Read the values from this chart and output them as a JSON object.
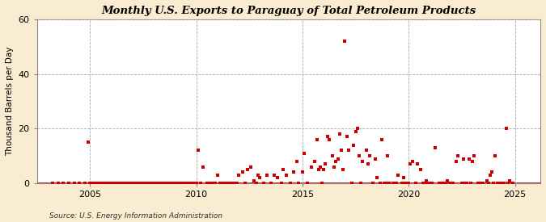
{
  "title": "Monthly U.S. Exports to Paraguay of Total Petroleum Products",
  "ylabel": "Thousand Barrels per Day",
  "source": "Source: U.S. Energy Information Administration",
  "fig_bg_color": "#faecd0",
  "plot_bg_color": "#ffffff",
  "marker_color": "#cc0000",
  "marker_size": 5,
  "ylim": [
    0,
    60
  ],
  "yticks": [
    0,
    20,
    40,
    60
  ],
  "xlim_start": 2002.5,
  "xlim_end": 2026.2,
  "xticks": [
    2005,
    2010,
    2015,
    2020,
    2025
  ],
  "data_points": [
    [
      2003.25,
      0
    ],
    [
      2003.5,
      0
    ],
    [
      2003.75,
      0
    ],
    [
      2004.0,
      0
    ],
    [
      2004.25,
      0
    ],
    [
      2004.5,
      0
    ],
    [
      2004.75,
      0
    ],
    [
      2004.9,
      15
    ],
    [
      2005.0,
      0
    ],
    [
      2005.1,
      0
    ],
    [
      2005.2,
      0
    ],
    [
      2005.3,
      0
    ],
    [
      2005.4,
      0
    ],
    [
      2005.5,
      0
    ],
    [
      2005.6,
      0
    ],
    [
      2005.7,
      0
    ],
    [
      2005.8,
      0
    ],
    [
      2005.9,
      0
    ],
    [
      2006.0,
      0
    ],
    [
      2006.1,
      0
    ],
    [
      2006.2,
      0
    ],
    [
      2006.3,
      0
    ],
    [
      2006.4,
      0
    ],
    [
      2006.5,
      0
    ],
    [
      2006.6,
      0
    ],
    [
      2006.7,
      0
    ],
    [
      2006.8,
      0
    ],
    [
      2006.9,
      0
    ],
    [
      2007.0,
      0
    ],
    [
      2007.1,
      0
    ],
    [
      2007.2,
      0
    ],
    [
      2007.3,
      0
    ],
    [
      2007.4,
      0
    ],
    [
      2007.5,
      0
    ],
    [
      2007.6,
      0
    ],
    [
      2007.7,
      0
    ],
    [
      2007.8,
      0
    ],
    [
      2007.9,
      0
    ],
    [
      2008.0,
      0
    ],
    [
      2008.1,
      0
    ],
    [
      2008.2,
      0
    ],
    [
      2008.3,
      0
    ],
    [
      2008.4,
      0
    ],
    [
      2008.5,
      0
    ],
    [
      2008.6,
      0
    ],
    [
      2008.7,
      0
    ],
    [
      2008.8,
      0
    ],
    [
      2008.9,
      0
    ],
    [
      2009.0,
      0
    ],
    [
      2009.1,
      0
    ],
    [
      2009.2,
      0
    ],
    [
      2009.3,
      0
    ],
    [
      2009.4,
      0
    ],
    [
      2009.5,
      0
    ],
    [
      2009.6,
      0
    ],
    [
      2009.7,
      0
    ],
    [
      2009.8,
      0
    ],
    [
      2009.9,
      0
    ],
    [
      2010.0,
      0
    ],
    [
      2010.08,
      12
    ],
    [
      2010.2,
      0
    ],
    [
      2010.33,
      6
    ],
    [
      2010.5,
      0
    ],
    [
      2010.6,
      0
    ],
    [
      2010.7,
      0
    ],
    [
      2010.8,
      0
    ],
    [
      2010.9,
      0
    ],
    [
      2011.0,
      3
    ],
    [
      2011.1,
      0
    ],
    [
      2011.2,
      0
    ],
    [
      2011.3,
      0
    ],
    [
      2011.4,
      0
    ],
    [
      2011.5,
      0
    ],
    [
      2011.6,
      0
    ],
    [
      2011.7,
      0
    ],
    [
      2011.8,
      0
    ],
    [
      2011.9,
      0
    ],
    [
      2012.0,
      3
    ],
    [
      2012.17,
      4
    ],
    [
      2012.3,
      0
    ],
    [
      2012.42,
      5
    ],
    [
      2012.58,
      6
    ],
    [
      2012.7,
      1
    ],
    [
      2012.83,
      0
    ],
    [
      2012.92,
      3
    ],
    [
      2013.0,
      2
    ],
    [
      2013.17,
      0
    ],
    [
      2013.33,
      3
    ],
    [
      2013.5,
      0
    ],
    [
      2013.67,
      3
    ],
    [
      2013.83,
      2
    ],
    [
      2014.0,
      0
    ],
    [
      2014.08,
      5
    ],
    [
      2014.25,
      3
    ],
    [
      2014.42,
      0
    ],
    [
      2014.58,
      4
    ],
    [
      2014.75,
      8
    ],
    [
      2014.83,
      0
    ],
    [
      2015.0,
      4
    ],
    [
      2015.08,
      11
    ],
    [
      2015.25,
      0
    ],
    [
      2015.42,
      6
    ],
    [
      2015.58,
      8
    ],
    [
      2015.67,
      16
    ],
    [
      2015.75,
      5
    ],
    [
      2015.83,
      6
    ],
    [
      2015.92,
      0
    ],
    [
      2016.0,
      5
    ],
    [
      2016.08,
      7
    ],
    [
      2016.17,
      17
    ],
    [
      2016.25,
      16
    ],
    [
      2016.42,
      10
    ],
    [
      2016.5,
      6
    ],
    [
      2016.58,
      8
    ],
    [
      2016.67,
      9
    ],
    [
      2016.75,
      18
    ],
    [
      2016.83,
      12
    ],
    [
      2016.92,
      5
    ],
    [
      2017.0,
      52
    ],
    [
      2017.08,
      17
    ],
    [
      2017.17,
      12
    ],
    [
      2017.33,
      0
    ],
    [
      2017.42,
      14
    ],
    [
      2017.5,
      19
    ],
    [
      2017.58,
      20
    ],
    [
      2017.67,
      10
    ],
    [
      2017.75,
      0
    ],
    [
      2017.83,
      8
    ],
    [
      2018.0,
      12
    ],
    [
      2018.08,
      7
    ],
    [
      2018.17,
      10
    ],
    [
      2018.33,
      0
    ],
    [
      2018.42,
      9
    ],
    [
      2018.5,
      2
    ],
    [
      2018.67,
      0
    ],
    [
      2018.75,
      16
    ],
    [
      2018.83,
      0
    ],
    [
      2018.92,
      0
    ],
    [
      2019.0,
      10
    ],
    [
      2019.08,
      0
    ],
    [
      2019.25,
      0
    ],
    [
      2019.42,
      0
    ],
    [
      2019.5,
      3
    ],
    [
      2019.67,
      0
    ],
    [
      2019.75,
      2
    ],
    [
      2019.83,
      0
    ],
    [
      2019.92,
      0
    ],
    [
      2020.0,
      0
    ],
    [
      2020.08,
      7
    ],
    [
      2020.17,
      8
    ],
    [
      2020.33,
      0
    ],
    [
      2020.42,
      7
    ],
    [
      2020.58,
      5
    ],
    [
      2020.67,
      0
    ],
    [
      2020.75,
      0
    ],
    [
      2020.83,
      1
    ],
    [
      2020.92,
      0
    ],
    [
      2021.0,
      0
    ],
    [
      2021.08,
      0
    ],
    [
      2021.25,
      13
    ],
    [
      2021.42,
      0
    ],
    [
      2021.58,
      0
    ],
    [
      2021.67,
      0
    ],
    [
      2021.75,
      0
    ],
    [
      2021.83,
      1
    ],
    [
      2021.92,
      0
    ],
    [
      2022.0,
      0
    ],
    [
      2022.08,
      0
    ],
    [
      2022.25,
      8
    ],
    [
      2022.33,
      10
    ],
    [
      2022.5,
      0
    ],
    [
      2022.58,
      9
    ],
    [
      2022.67,
      0
    ],
    [
      2022.75,
      0
    ],
    [
      2022.83,
      9
    ],
    [
      2022.92,
      0
    ],
    [
      2023.0,
      8
    ],
    [
      2023.08,
      10
    ],
    [
      2023.25,
      0
    ],
    [
      2023.42,
      0
    ],
    [
      2023.5,
      0
    ],
    [
      2023.67,
      1
    ],
    [
      2023.75,
      0
    ],
    [
      2023.83,
      3
    ],
    [
      2023.92,
      4
    ],
    [
      2024.0,
      0
    ],
    [
      2024.08,
      10
    ],
    [
      2024.17,
      0
    ],
    [
      2024.33,
      0
    ],
    [
      2024.5,
      0
    ],
    [
      2024.58,
      20
    ],
    [
      2024.67,
      0
    ],
    [
      2024.75,
      1
    ],
    [
      2024.92,
      0
    ]
  ]
}
